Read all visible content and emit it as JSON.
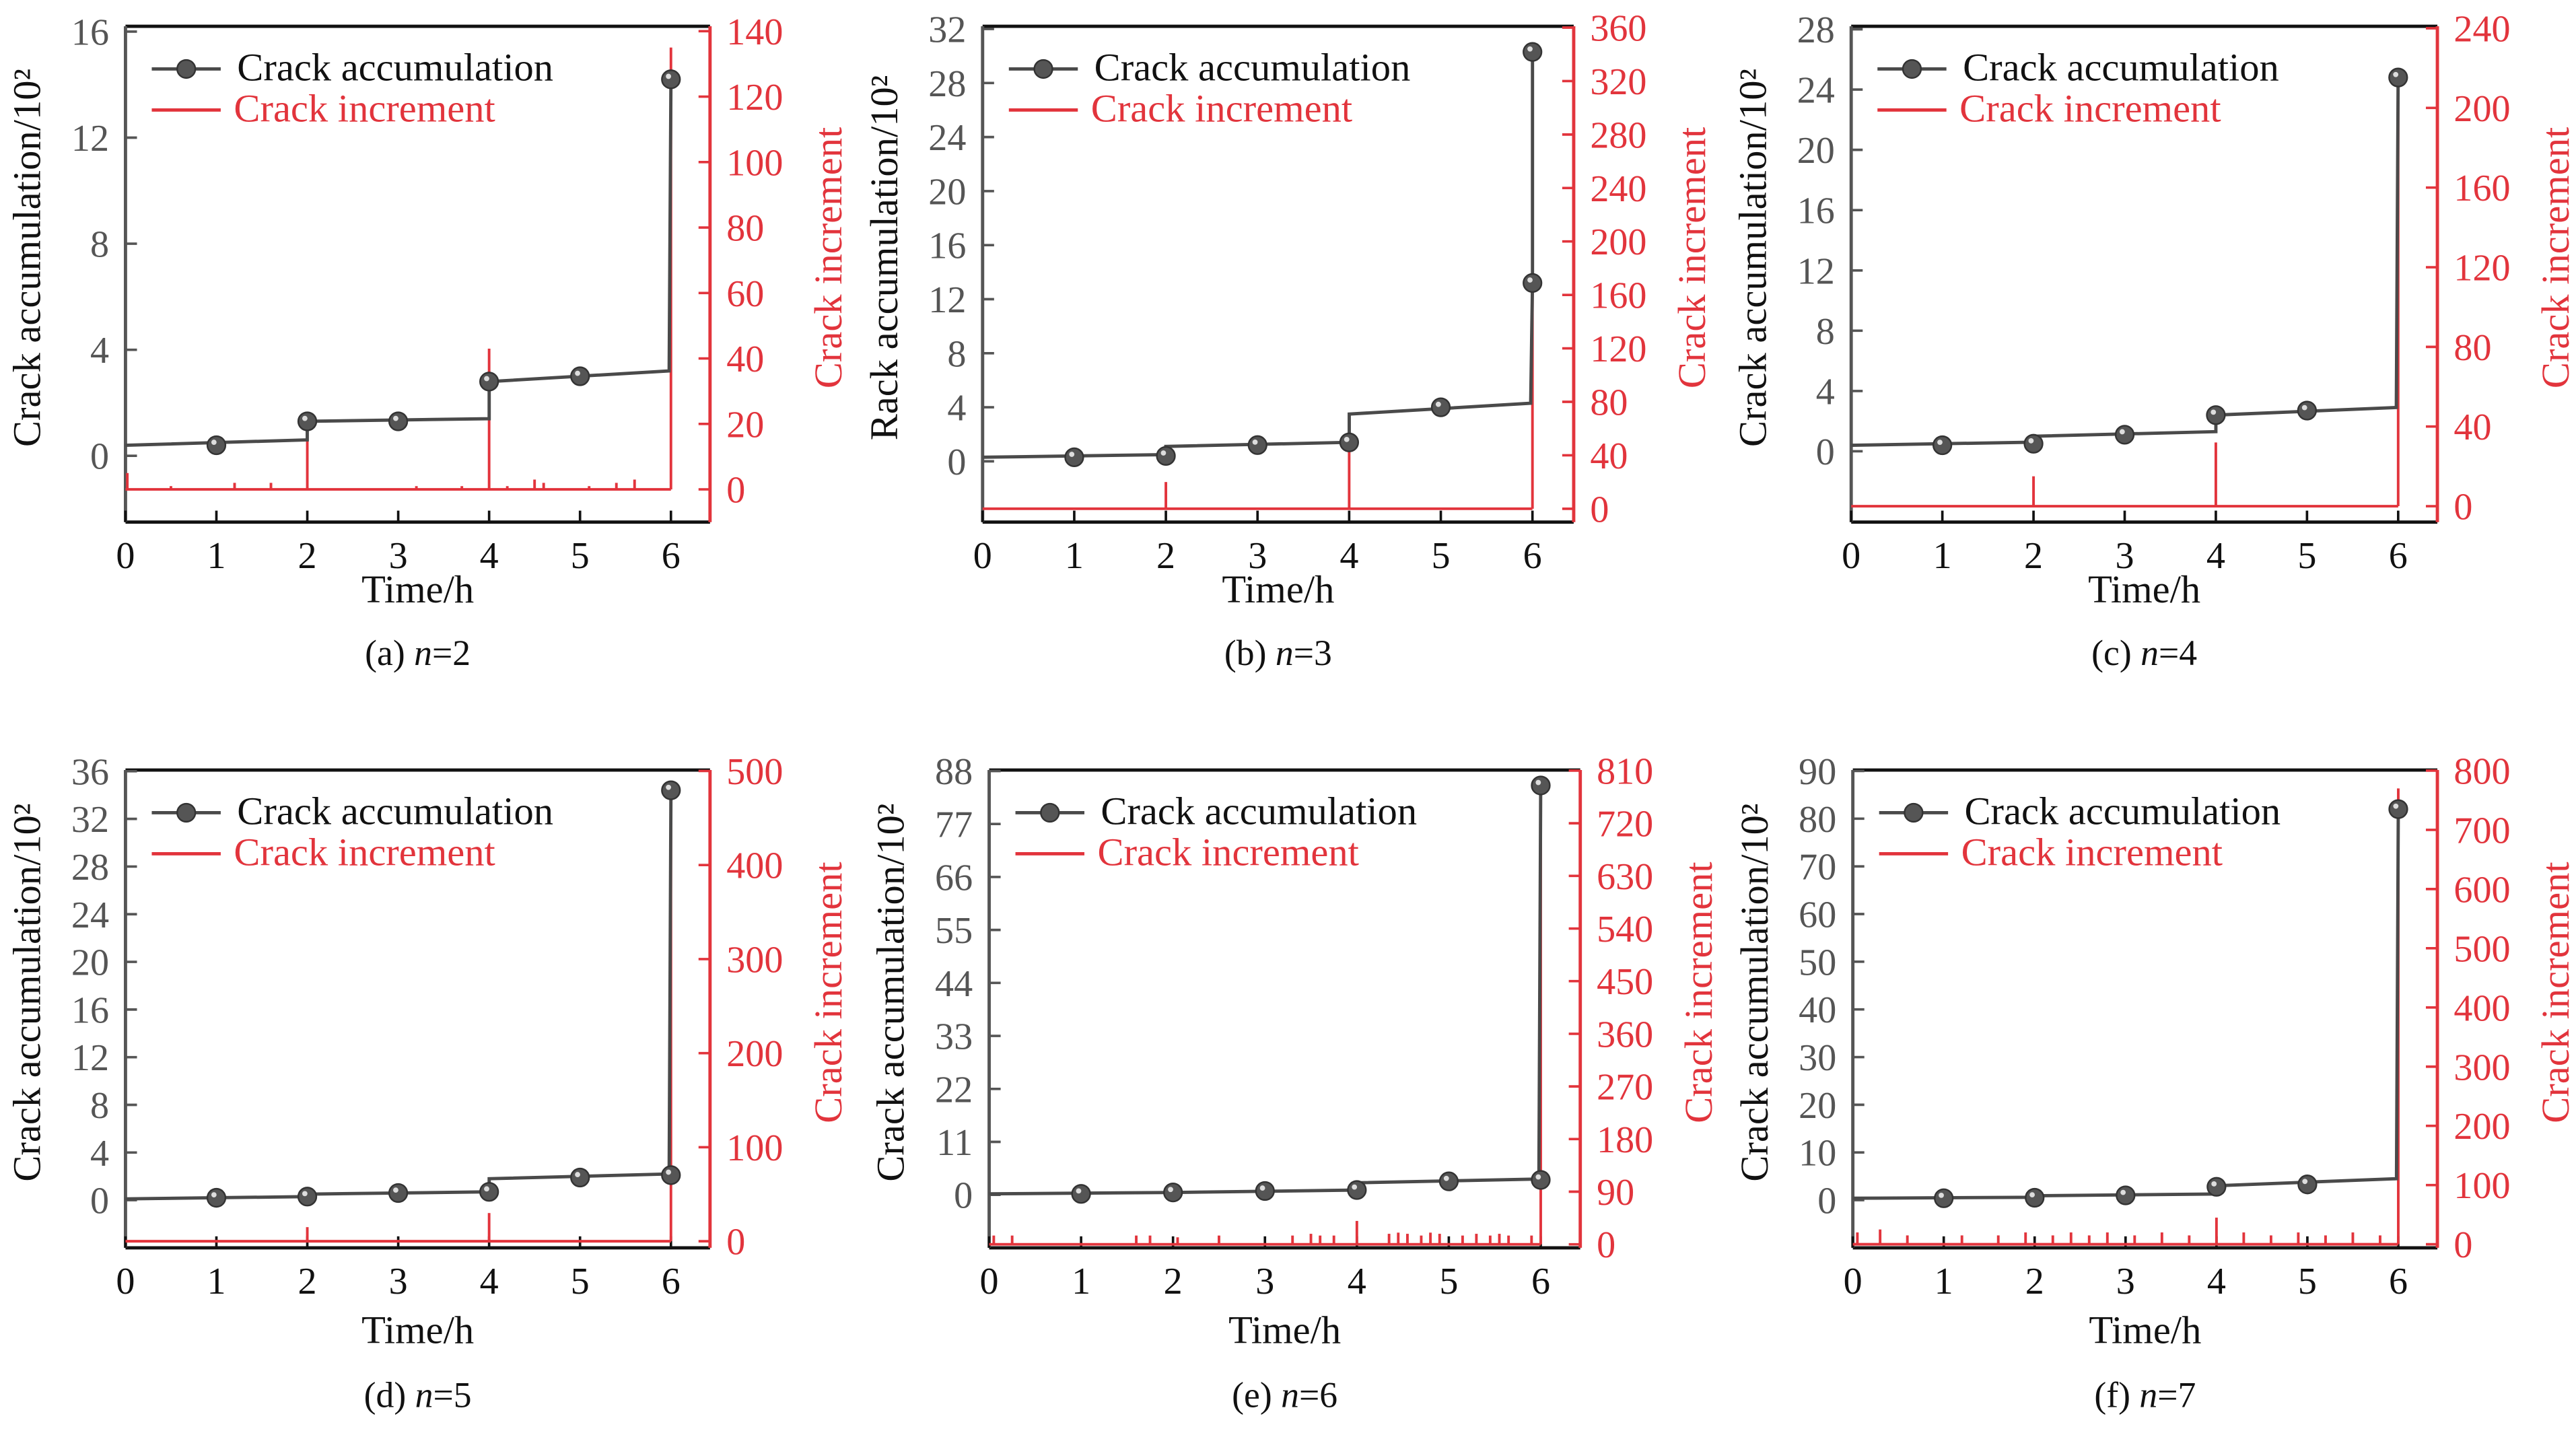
{
  "colors": {
    "accumulation": "#4a4a4a",
    "increment": "#e2343c",
    "left_axis": "#555555",
    "frame": "#111111"
  },
  "chart_data": [
    {
      "type": "line",
      "caption_prefix": "(a) ",
      "caption_n": "n",
      "caption_value": "=2",
      "xlabel": "Time/h",
      "ylabel": "Crack accumulation/10²",
      "ylabel_right": "Crack increment",
      "xlim": [
        0,
        6.43
      ],
      "xticks": [
        "0",
        "1",
        "2",
        "3",
        "4",
        "5",
        "6"
      ],
      "ylim": [
        -2.5,
        16.2
      ],
      "yticks": [
        "0",
        "4",
        "8",
        "12",
        "16"
      ],
      "ylim_right": [
        -10,
        141.5
      ],
      "yticks_right": [
        "0",
        "20",
        "40",
        "60",
        "80",
        "100",
        "120",
        "140"
      ],
      "legend": [
        "Crack accumulation",
        "Crack increment"
      ],
      "accumulation_line": [
        [
          0,
          0.4
        ],
        [
          2,
          0.6
        ],
        [
          2,
          1.3
        ],
        [
          4,
          1.4
        ],
        [
          4,
          2.8
        ],
        [
          5.98,
          3.2
        ],
        [
          6,
          14.2
        ]
      ],
      "accumulation_markers": [
        [
          1,
          0.4
        ],
        [
          2,
          1.3
        ],
        [
          3,
          1.3
        ],
        [
          4,
          2.8
        ],
        [
          5,
          3.0
        ],
        [
          6,
          14.2
        ]
      ],
      "increment_spikes": [
        [
          0.02,
          5
        ],
        [
          0.5,
          1
        ],
        [
          1.2,
          2
        ],
        [
          1.6,
          2
        ],
        [
          2,
          22
        ],
        [
          3.2,
          1
        ],
        [
          3.7,
          1
        ],
        [
          4,
          43
        ],
        [
          4.2,
          1
        ],
        [
          4.5,
          3
        ],
        [
          4.6,
          2
        ],
        [
          5.1,
          1
        ],
        [
          5.4,
          2
        ],
        [
          5.6,
          3
        ],
        [
          6,
          135
        ]
      ]
    },
    {
      "type": "line",
      "caption_prefix": "(b) ",
      "caption_n": "n",
      "caption_value": "=3",
      "xlabel": "Time/h",
      "ylabel": "Rack accumulation/10²",
      "ylabel_right": "Crack increment",
      "xlim": [
        0,
        6.45
      ],
      "xticks": [
        "0",
        "1",
        "2",
        "3",
        "4",
        "5",
        "6"
      ],
      "ylim": [
        -4.5,
        32.2
      ],
      "yticks": [
        "0",
        "4",
        "8",
        "12",
        "16",
        "20",
        "24",
        "28",
        "32"
      ],
      "ylim_right": [
        -10,
        361
      ],
      "yticks_right": [
        "0",
        "40",
        "80",
        "120",
        "160",
        "200",
        "240",
        "280",
        "320",
        "360"
      ],
      "legend": [
        "Crack accumulation",
        "Crack increment"
      ],
      "accumulation_line": [
        [
          0,
          0.3
        ],
        [
          2,
          0.5
        ],
        [
          2,
          1.1
        ],
        [
          4,
          1.4
        ],
        [
          4,
          3.5
        ],
        [
          5.98,
          4.3
        ],
        [
          6,
          13.2
        ],
        [
          6,
          30.3
        ]
      ],
      "accumulation_markers": [
        [
          1,
          0.3
        ],
        [
          2,
          0.4
        ],
        [
          3,
          1.2
        ],
        [
          4,
          1.4
        ],
        [
          5,
          4.0
        ],
        [
          6,
          13.2
        ],
        [
          6,
          30.3
        ]
      ],
      "increment_spikes": [
        [
          2,
          20
        ],
        [
          4,
          50
        ],
        [
          6,
          345
        ]
      ]
    },
    {
      "type": "line",
      "caption_prefix": "(c) ",
      "caption_n": "n",
      "caption_value": "=4",
      "xlabel": "Time/h",
      "ylabel": "Crack accumulation/10²",
      "ylabel_right": "Crack increment",
      "xlim": [
        0,
        6.43
      ],
      "xticks": [
        "0",
        "1",
        "2",
        "3",
        "4",
        "5",
        "6"
      ],
      "ylim": [
        -4.7,
        28.2
      ],
      "yticks": [
        "0",
        "4",
        "8",
        "12",
        "16",
        "20",
        "24",
        "28"
      ],
      "ylim_right": [
        -8,
        241
      ],
      "yticks_right": [
        "0",
        "40",
        "80",
        "120",
        "160",
        "200",
        "240"
      ],
      "legend": [
        "Crack accumulation",
        "Crack increment"
      ],
      "accumulation_line": [
        [
          0,
          0.4
        ],
        [
          2,
          0.6
        ],
        [
          2,
          1.0
        ],
        [
          4,
          1.3
        ],
        [
          4,
          2.4
        ],
        [
          5.98,
          2.9
        ],
        [
          6,
          24.8
        ]
      ],
      "accumulation_markers": [
        [
          1,
          0.4
        ],
        [
          2,
          0.5
        ],
        [
          3,
          1.1
        ],
        [
          4,
          2.4
        ],
        [
          5,
          2.7
        ],
        [
          6,
          24.8
        ]
      ],
      "increment_spikes": [
        [
          2,
          15
        ],
        [
          4,
          32
        ],
        [
          6,
          215
        ]
      ]
    },
    {
      "type": "line",
      "caption_prefix": "(d) ",
      "caption_n": "n",
      "caption_value": "=5",
      "xlabel": "Time/h",
      "ylabel": "Crack accumulation/10²",
      "ylabel_right": "Crack increment",
      "xlim": [
        0,
        6.43
      ],
      "xticks": [
        "0",
        "1",
        "2",
        "3",
        "4",
        "5",
        "6"
      ],
      "ylim": [
        -4,
        36.1
      ],
      "yticks": [
        "0",
        "4",
        "8",
        "12",
        "16",
        "20",
        "24",
        "28",
        "32",
        "36"
      ],
      "ylim_right": [
        -7,
        501
      ],
      "yticks_right": [
        "0",
        "100",
        "200",
        "300",
        "400",
        "500"
      ],
      "legend": [
        "Crack accumulation",
        "Crack increment"
      ],
      "accumulation_line": [
        [
          0,
          0.1
        ],
        [
          2,
          0.3
        ],
        [
          2,
          0.5
        ],
        [
          4,
          0.7
        ],
        [
          4,
          1.8
        ],
        [
          5.98,
          2.2
        ],
        [
          6,
          34.4
        ]
      ],
      "accumulation_markers": [
        [
          1,
          0.2
        ],
        [
          2,
          0.3
        ],
        [
          3,
          0.6
        ],
        [
          4,
          0.7
        ],
        [
          5,
          1.9
        ],
        [
          6,
          2.1
        ],
        [
          6,
          34.4
        ]
      ],
      "increment_spikes": [
        [
          2,
          15
        ],
        [
          4,
          30
        ],
        [
          6,
          480
        ]
      ]
    },
    {
      "type": "line",
      "caption_prefix": "(e) ",
      "caption_n": "n",
      "caption_value": "=6",
      "xlabel": "Time/h",
      "ylabel": "Crack accumulation/10²",
      "ylabel_right": "Crack increment",
      "xlim": [
        0,
        6.43
      ],
      "xticks": [
        "0",
        "1",
        "2",
        "3",
        "4",
        "5",
        "6"
      ],
      "ylim": [
        -11,
        88.2
      ],
      "yticks": [
        "0",
        "11",
        "22",
        "33",
        "44",
        "55",
        "66",
        "77",
        "88"
      ],
      "ylim_right": [
        -6,
        811
      ],
      "yticks_right": [
        "0",
        "90",
        "180",
        "270",
        "360",
        "450",
        "540",
        "630",
        "720",
        "810"
      ],
      "legend": [
        "Crack accumulation",
        "Crack increment"
      ],
      "accumulation_line": [
        [
          0,
          0.2
        ],
        [
          2,
          0.5
        ],
        [
          4,
          1.0
        ],
        [
          4,
          2.5
        ],
        [
          5.98,
          3.3
        ],
        [
          6,
          85
        ]
      ],
      "accumulation_markers": [
        [
          1,
          0.2
        ],
        [
          2,
          0.5
        ],
        [
          3,
          0.8
        ],
        [
          4,
          1.0
        ],
        [
          5,
          2.8
        ],
        [
          6,
          3.1
        ],
        [
          6,
          85
        ]
      ],
      "increment_spikes": [
        [
          0.05,
          15
        ],
        [
          0.25,
          15
        ],
        [
          1.6,
          15
        ],
        [
          1.75,
          15
        ],
        [
          2.05,
          12
        ],
        [
          2.5,
          15
        ],
        [
          3.3,
          15
        ],
        [
          3.5,
          18
        ],
        [
          3.6,
          15
        ],
        [
          3.75,
          15
        ],
        [
          4,
          40
        ],
        [
          4.35,
          18
        ],
        [
          4.45,
          20
        ],
        [
          4.55,
          18
        ],
        [
          4.7,
          15
        ],
        [
          4.8,
          20
        ],
        [
          4.9,
          18
        ],
        [
          5.15,
          15
        ],
        [
          5.3,
          18
        ],
        [
          5.45,
          15
        ],
        [
          5.55,
          18
        ],
        [
          5.65,
          15
        ],
        [
          5.9,
          15
        ],
        [
          6,
          800
        ]
      ]
    },
    {
      "type": "line",
      "caption_prefix": "(f) ",
      "caption_n": "n",
      "caption_value": "=7",
      "xlabel": "Time/h",
      "ylabel": "Crack accumulation/10²",
      "ylabel_right": "Crack increment",
      "xlim": [
        0,
        6.43
      ],
      "xticks": [
        "0",
        "1",
        "2",
        "3",
        "4",
        "5",
        "6"
      ],
      "ylim": [
        -10,
        90.2
      ],
      "yticks": [
        "0",
        "10",
        "20",
        "30",
        "40",
        "50",
        "60",
        "70",
        "80",
        "90"
      ],
      "ylim_right": [
        -6,
        801
      ],
      "yticks_right": [
        "0",
        "100",
        "200",
        "300",
        "400",
        "500",
        "600",
        "700",
        "800"
      ],
      "legend": [
        "Crack accumulation",
        "Crack increment"
      ],
      "accumulation_line": [
        [
          0,
          0.4
        ],
        [
          2,
          0.6
        ],
        [
          2,
          0.9
        ],
        [
          4,
          1.3
        ],
        [
          4,
          3.0
        ],
        [
          5.98,
          4.5
        ],
        [
          6,
          82
        ]
      ],
      "accumulation_markers": [
        [
          1,
          0.4
        ],
        [
          2,
          0.5
        ],
        [
          3,
          1.0
        ],
        [
          4,
          2.8
        ],
        [
          5,
          3.3
        ],
        [
          6,
          82
        ]
      ],
      "increment_spikes": [
        [
          0.05,
          20
        ],
        [
          0.3,
          25
        ],
        [
          0.6,
          15
        ],
        [
          1.2,
          15
        ],
        [
          1.6,
          15
        ],
        [
          1.9,
          20
        ],
        [
          2.2,
          15
        ],
        [
          2.4,
          20
        ],
        [
          2.6,
          15
        ],
        [
          2.8,
          20
        ],
        [
          3.1,
          15
        ],
        [
          3.4,
          20
        ],
        [
          3.7,
          15
        ],
        [
          4,
          45
        ],
        [
          4.3,
          20
        ],
        [
          4.6,
          15
        ],
        [
          4.9,
          20
        ],
        [
          5.2,
          15
        ],
        [
          5.5,
          20
        ],
        [
          5.8,
          15
        ],
        [
          6,
          770
        ]
      ]
    }
  ]
}
